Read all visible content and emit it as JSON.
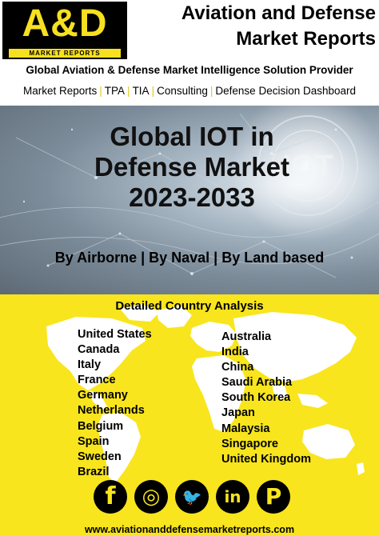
{
  "header": {
    "logo_text": "A&D",
    "logo_subtext": "MARKET REPORTS",
    "title_line1": "Aviation and Defense",
    "title_line2": "Market Reports",
    "tagline": "Global Aviation & Defense Market Intelligence Solution Provider",
    "nav": [
      "Market Reports",
      "TPA",
      "TIA",
      "Consulting",
      "Defense Decision Dashboard"
    ],
    "separator": "|"
  },
  "hero": {
    "title_line1": "Global IOT in",
    "title_line2": "Defense Market",
    "title_line3": "2023-2033",
    "segments": "By Airborne | By Naval | By Land based",
    "background_text": "IOT"
  },
  "countries": {
    "heading": "Detailed Country Analysis",
    "left": [
      "United States",
      "Canada",
      "Italy",
      "France",
      "Germany",
      "Netherlands",
      "Belgium",
      "Spain",
      "Sweden",
      "Brazil"
    ],
    "right": [
      "Australia",
      "India",
      "China",
      "Saudi Arabia",
      "South Korea",
      "Japan",
      "Malaysia",
      "Singapore",
      "United Kingdom"
    ]
  },
  "social": {
    "icons": [
      {
        "name": "facebook-icon",
        "glyph": "f"
      },
      {
        "name": "instagram-icon",
        "glyph": "◎"
      },
      {
        "name": "twitter-icon",
        "glyph": "🐦"
      },
      {
        "name": "linkedin-icon",
        "glyph": "in"
      },
      {
        "name": "pinterest-icon",
        "glyph": "P"
      }
    ]
  },
  "footer": {
    "url": "www.aviationanddefensemarketreports.com"
  },
  "colors": {
    "brand_yellow": "#f8e51d",
    "black": "#000000"
  }
}
